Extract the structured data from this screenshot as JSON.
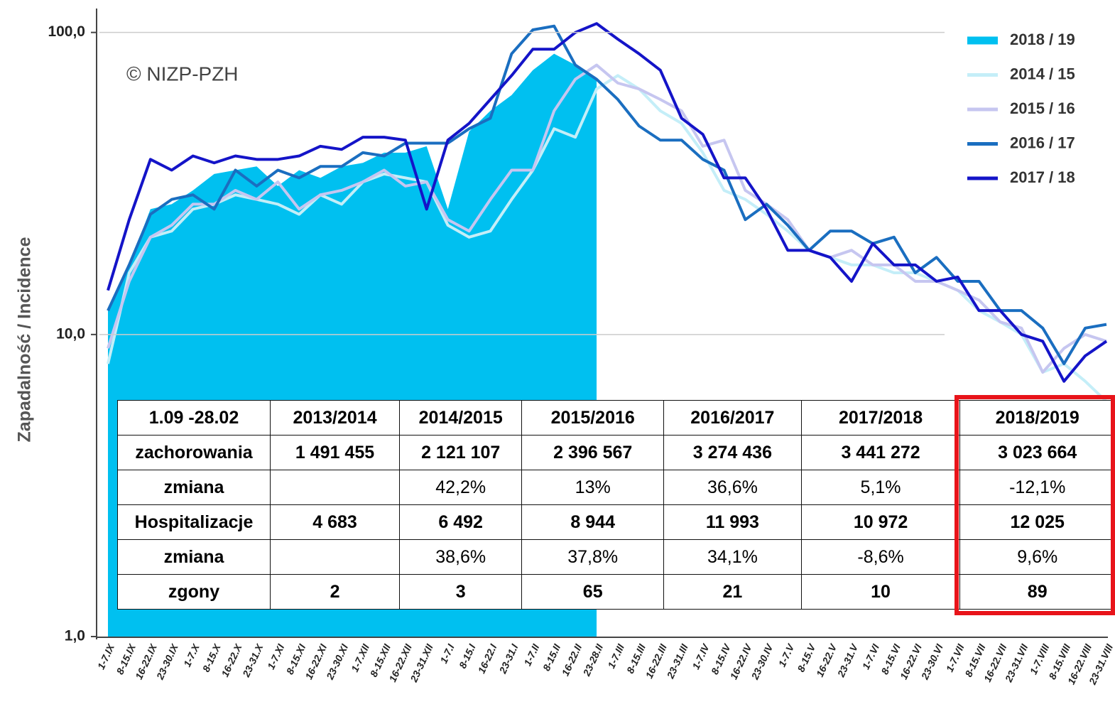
{
  "chart_data": {
    "type": "line",
    "annotation": "© NIZP-PZH",
    "y_label": "Zapadalność  /  Incidence",
    "log_scale": true,
    "grid": true,
    "legend": "upper right",
    "ylim": [
      1,
      120
    ],
    "yticks": [
      {
        "value": 1,
        "label": "1,0"
      },
      {
        "value": 10,
        "label": "10,0"
      },
      {
        "value": 100,
        "label": "100,0"
      }
    ],
    "categories": [
      "1-7.IX",
      "8-15.IX",
      "16-22.IX",
      "23-30.IX",
      "1-7.X",
      "8-15.X",
      "16-22.X",
      "23-31.X",
      "1-7.XI",
      "8-15.XI",
      "16-22.XI",
      "23-30.XI",
      "1-7.XII",
      "8-15.XII",
      "16-22.XII",
      "23-31.XII",
      "1-7.I",
      "8-15.I",
      "16-22.I",
      "23-31.I",
      "1-7.II",
      "8-15.II",
      "16-22.II",
      "23-28.II",
      "1-7.III",
      "8-15.III",
      "16-22.III",
      "23-31.III",
      "1-7.IV",
      "8-15.IV",
      "16-22.IV",
      "23-30.IV",
      "1-7.V",
      "8-15.V",
      "16-22.V",
      "23-31.V",
      "1-7.VI",
      "8-15.VI",
      "16-22.VI",
      "23-30.VI",
      "1-7.VII",
      "8-15.VII",
      "16-22.VII",
      "23-31.VII",
      "1-7.VIII",
      "8-15.VIII",
      "16-22.VIII",
      "23-31.VIII"
    ],
    "series": [
      {
        "name": "2018 / 19",
        "type": "area",
        "color": "#00c0f0",
        "values": [
          12,
          17,
          26,
          27,
          30,
          34,
          35,
          36,
          31,
          35,
          33,
          36,
          37,
          40,
          40,
          42,
          26,
          47,
          55,
          62,
          75,
          85,
          78,
          70,
          null,
          null,
          null,
          null,
          null,
          null,
          null,
          null,
          null,
          null,
          null,
          null,
          null,
          null,
          null,
          null,
          null,
          null,
          null,
          null,
          null,
          null,
          null,
          null
        ]
      },
      {
        "name": "2014 / 15",
        "color": "#c4eef8",
        "values": [
          8,
          16,
          21,
          22,
          26,
          27,
          29,
          28,
          27,
          25,
          29,
          27,
          32,
          34,
          33,
          32,
          23,
          21,
          22,
          28,
          35,
          48,
          45,
          65,
          72,
          65,
          55,
          50,
          40,
          30,
          28,
          25,
          22,
          19,
          18,
          17,
          17,
          16,
          16,
          15,
          14,
          12,
          11,
          10,
          7.5,
          8,
          7,
          6
        ]
      },
      {
        "name": "2015 / 16",
        "color": "#c6c6f0",
        "values": [
          9,
          15,
          21,
          23,
          27,
          27,
          30,
          28,
          32,
          26,
          29,
          30,
          32,
          35,
          31,
          32,
          24,
          22,
          28,
          35,
          35,
          55,
          70,
          78,
          68,
          65,
          60,
          55,
          42,
          44,
          30,
          27,
          24,
          19,
          18,
          19,
          17,
          17,
          15,
          15,
          14,
          13,
          11,
          10.5,
          7.5,
          9,
          10,
          9.5
        ]
      },
      {
        "name": "2016 / 17",
        "color": "#1a6ec0",
        "values": [
          12,
          17,
          25,
          28,
          29,
          26,
          35,
          31,
          35,
          33,
          36,
          36,
          40,
          39,
          43,
          43,
          43,
          48,
          52,
          85,
          102,
          105,
          78,
          70,
          60,
          49,
          44,
          44,
          38,
          35,
          24,
          27,
          23,
          19,
          22,
          22,
          20,
          21,
          16,
          18,
          15,
          15,
          12,
          12,
          10.5,
          8,
          10.5,
          10.8
        ]
      },
      {
        "name": "2017 / 18",
        "color": "#1414c8",
        "values": [
          14,
          24,
          38,
          35,
          39,
          37,
          39,
          38,
          38,
          39,
          42,
          41,
          45,
          45,
          44,
          26,
          44,
          50,
          60,
          72,
          88,
          88,
          100,
          107,
          95,
          85,
          75,
          52,
          46,
          33,
          33,
          26,
          19,
          19,
          18,
          15,
          20,
          17,
          17,
          15,
          15.5,
          12,
          12,
          10,
          9.5,
          7,
          8.5,
          9.5
        ]
      }
    ]
  },
  "table": {
    "header": [
      "1.09 -28.02",
      "2013/2014",
      "2014/2015",
      "2015/2016",
      "2016/2017",
      "2017/2018",
      "2018/2019"
    ],
    "rows": [
      [
        "zachorowania",
        "1 491 455",
        "2 121 107",
        "2 396 567",
        "3 274 436",
        "3 441 272",
        "3 023 664"
      ],
      [
        "zmiana",
        null,
        "42,2%",
        "13%",
        "36,6%",
        "5,1%",
        "-12,1%"
      ],
      [
        "Hospitalizacje",
        "4 683",
        "6 492",
        "8 944",
        "11 993",
        "10 972",
        "12 025"
      ],
      [
        "zmiana",
        null,
        "38,6%",
        "37,8%",
        "34,1%",
        "-8,6%",
        "9,6%"
      ],
      [
        "zgony",
        "2",
        "3",
        "65",
        "21",
        "10",
        "89"
      ]
    ],
    "bold_rows": [
      0,
      2,
      4
    ],
    "highlight_column": 6
  }
}
